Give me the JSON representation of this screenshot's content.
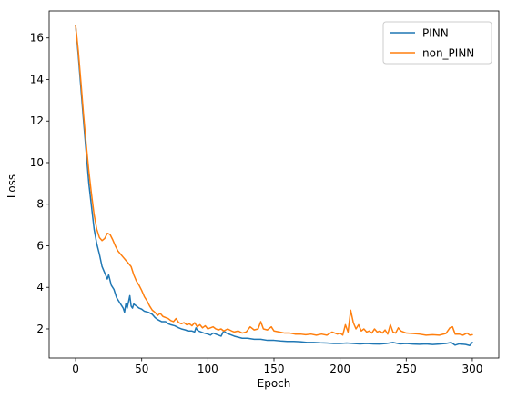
{
  "chart_data": {
    "type": "line",
    "title": "",
    "xlabel": "Epoch",
    "ylabel": "Loss",
    "xlim": [
      -20,
      320
    ],
    "ylim": [
      0.6,
      17.3
    ],
    "xticks": [
      0,
      50,
      100,
      150,
      200,
      250,
      300
    ],
    "yticks": [
      2,
      4,
      6,
      8,
      10,
      12,
      14,
      16
    ],
    "grid": false,
    "legend": "top-right",
    "series": [
      {
        "name": "PINN",
        "color": "#1f77b4",
        "points": [
          [
            0,
            16.6
          ],
          [
            2,
            15.2
          ],
          [
            4,
            13.6
          ],
          [
            6,
            12.0
          ],
          [
            8,
            10.5
          ],
          [
            10,
            9.0
          ],
          [
            12,
            7.9
          ],
          [
            14,
            6.8
          ],
          [
            16,
            6.1
          ],
          [
            18,
            5.6
          ],
          [
            20,
            5.0
          ],
          [
            22,
            4.7
          ],
          [
            24,
            4.4
          ],
          [
            25,
            4.6
          ],
          [
            27,
            4.1
          ],
          [
            29,
            3.9
          ],
          [
            31,
            3.5
          ],
          [
            33,
            3.3
          ],
          [
            35,
            3.1
          ],
          [
            36,
            3.0
          ],
          [
            37,
            2.8
          ],
          [
            38,
            3.2
          ],
          [
            39,
            3.0
          ],
          [
            40,
            3.3
          ],
          [
            41,
            3.6
          ],
          [
            42,
            3.1
          ],
          [
            43,
            3.0
          ],
          [
            44,
            3.2
          ],
          [
            46,
            3.1
          ],
          [
            48,
            3.0
          ],
          [
            50,
            2.95
          ],
          [
            52,
            2.85
          ],
          [
            55,
            2.8
          ],
          [
            58,
            2.7
          ],
          [
            60,
            2.55
          ],
          [
            62,
            2.45
          ],
          [
            65,
            2.35
          ],
          [
            68,
            2.35
          ],
          [
            70,
            2.25
          ],
          [
            72,
            2.2
          ],
          [
            75,
            2.15
          ],
          [
            78,
            2.05
          ],
          [
            80,
            2.0
          ],
          [
            83,
            1.95
          ],
          [
            85,
            1.9
          ],
          [
            88,
            1.9
          ],
          [
            90,
            1.85
          ],
          [
            91,
            2.05
          ],
          [
            92,
            1.95
          ],
          [
            93,
            1.9
          ],
          [
            95,
            1.85
          ],
          [
            97,
            1.8
          ],
          [
            100,
            1.75
          ],
          [
            102,
            1.7
          ],
          [
            104,
            1.8
          ],
          [
            106,
            1.75
          ],
          [
            108,
            1.7
          ],
          [
            110,
            1.65
          ],
          [
            112,
            1.9
          ],
          [
            114,
            1.8
          ],
          [
            116,
            1.75
          ],
          [
            118,
            1.7
          ],
          [
            120,
            1.65
          ],
          [
            123,
            1.6
          ],
          [
            126,
            1.55
          ],
          [
            130,
            1.55
          ],
          [
            135,
            1.5
          ],
          [
            140,
            1.5
          ],
          [
            145,
            1.45
          ],
          [
            150,
            1.45
          ],
          [
            155,
            1.42
          ],
          [
            160,
            1.4
          ],
          [
            165,
            1.4
          ],
          [
            170,
            1.38
          ],
          [
            175,
            1.35
          ],
          [
            180,
            1.35
          ],
          [
            185,
            1.33
          ],
          [
            190,
            1.32
          ],
          [
            195,
            1.3
          ],
          [
            200,
            1.3
          ],
          [
            205,
            1.32
          ],
          [
            210,
            1.3
          ],
          [
            215,
            1.28
          ],
          [
            220,
            1.3
          ],
          [
            225,
            1.28
          ],
          [
            230,
            1.27
          ],
          [
            235,
            1.3
          ],
          [
            240,
            1.35
          ],
          [
            245,
            1.28
          ],
          [
            250,
            1.3
          ],
          [
            255,
            1.27
          ],
          [
            260,
            1.26
          ],
          [
            265,
            1.28
          ],
          [
            270,
            1.25
          ],
          [
            275,
            1.27
          ],
          [
            280,
            1.3
          ],
          [
            284,
            1.35
          ],
          [
            287,
            1.22
          ],
          [
            290,
            1.28
          ],
          [
            295,
            1.25
          ],
          [
            298,
            1.2
          ],
          [
            300,
            1.35
          ]
        ]
      },
      {
        "name": "non_PINN",
        "color": "#ff7f0e",
        "points": [
          [
            0,
            16.6
          ],
          [
            2,
            15.4
          ],
          [
            4,
            13.9
          ],
          [
            6,
            12.3
          ],
          [
            8,
            10.9
          ],
          [
            10,
            9.6
          ],
          [
            12,
            8.5
          ],
          [
            14,
            7.5
          ],
          [
            16,
            6.8
          ],
          [
            18,
            6.4
          ],
          [
            20,
            6.25
          ],
          [
            22,
            6.35
          ],
          [
            24,
            6.6
          ],
          [
            26,
            6.55
          ],
          [
            28,
            6.3
          ],
          [
            30,
            6.0
          ],
          [
            32,
            5.75
          ],
          [
            34,
            5.6
          ],
          [
            36,
            5.45
          ],
          [
            38,
            5.3
          ],
          [
            40,
            5.15
          ],
          [
            42,
            5.0
          ],
          [
            44,
            4.6
          ],
          [
            46,
            4.3
          ],
          [
            48,
            4.1
          ],
          [
            50,
            3.85
          ],
          [
            52,
            3.55
          ],
          [
            54,
            3.35
          ],
          [
            56,
            3.1
          ],
          [
            58,
            2.9
          ],
          [
            60,
            2.8
          ],
          [
            62,
            2.65
          ],
          [
            64,
            2.75
          ],
          [
            66,
            2.6
          ],
          [
            68,
            2.55
          ],
          [
            70,
            2.5
          ],
          [
            72,
            2.4
          ],
          [
            74,
            2.35
          ],
          [
            76,
            2.5
          ],
          [
            78,
            2.3
          ],
          [
            80,
            2.25
          ],
          [
            82,
            2.3
          ],
          [
            84,
            2.2
          ],
          [
            86,
            2.25
          ],
          [
            88,
            2.15
          ],
          [
            90,
            2.3
          ],
          [
            92,
            2.1
          ],
          [
            94,
            2.2
          ],
          [
            96,
            2.05
          ],
          [
            98,
            2.15
          ],
          [
            100,
            2.0
          ],
          [
            102,
            2.05
          ],
          [
            104,
            2.1
          ],
          [
            106,
            2.0
          ],
          [
            108,
            1.95
          ],
          [
            110,
            2.0
          ],
          [
            112,
            1.9
          ],
          [
            115,
            2.0
          ],
          [
            118,
            1.9
          ],
          [
            120,
            1.85
          ],
          [
            123,
            1.9
          ],
          [
            126,
            1.8
          ],
          [
            129,
            1.85
          ],
          [
            132,
            2.1
          ],
          [
            135,
            1.95
          ],
          [
            138,
            2.0
          ],
          [
            140,
            2.35
          ],
          [
            142,
            2.0
          ],
          [
            145,
            1.95
          ],
          [
            148,
            2.1
          ],
          [
            150,
            1.9
          ],
          [
            154,
            1.85
          ],
          [
            158,
            1.8
          ],
          [
            162,
            1.8
          ],
          [
            166,
            1.75
          ],
          [
            170,
            1.75
          ],
          [
            174,
            1.72
          ],
          [
            178,
            1.75
          ],
          [
            182,
            1.7
          ],
          [
            186,
            1.75
          ],
          [
            190,
            1.7
          ],
          [
            194,
            1.85
          ],
          [
            198,
            1.75
          ],
          [
            200,
            1.8
          ],
          [
            202,
            1.7
          ],
          [
            204,
            2.2
          ],
          [
            206,
            1.85
          ],
          [
            208,
            2.9
          ],
          [
            210,
            2.3
          ],
          [
            212,
            2.0
          ],
          [
            214,
            2.2
          ],
          [
            216,
            1.9
          ],
          [
            218,
            2.0
          ],
          [
            220,
            1.85
          ],
          [
            222,
            1.9
          ],
          [
            224,
            1.8
          ],
          [
            226,
            2.0
          ],
          [
            228,
            1.85
          ],
          [
            230,
            1.9
          ],
          [
            232,
            1.8
          ],
          [
            234,
            1.95
          ],
          [
            236,
            1.75
          ],
          [
            238,
            2.2
          ],
          [
            240,
            1.85
          ],
          [
            242,
            1.8
          ],
          [
            244,
            2.05
          ],
          [
            246,
            1.9
          ],
          [
            248,
            1.85
          ],
          [
            250,
            1.8
          ],
          [
            255,
            1.78
          ],
          [
            260,
            1.75
          ],
          [
            265,
            1.7
          ],
          [
            270,
            1.72
          ],
          [
            275,
            1.7
          ],
          [
            280,
            1.78
          ],
          [
            283,
            2.05
          ],
          [
            285,
            2.1
          ],
          [
            287,
            1.75
          ],
          [
            290,
            1.75
          ],
          [
            293,
            1.7
          ],
          [
            296,
            1.8
          ],
          [
            298,
            1.7
          ],
          [
            300,
            1.72
          ]
        ]
      }
    ]
  }
}
